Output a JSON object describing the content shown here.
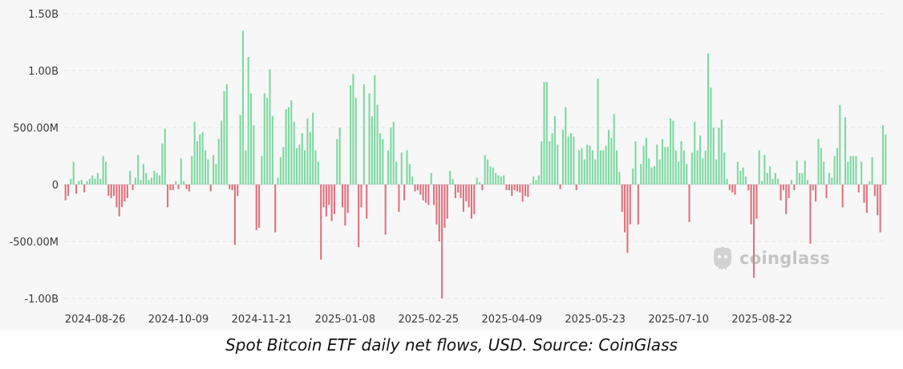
{
  "chart_data": {
    "type": "bar",
    "title": "",
    "xlabel": "",
    "ylabel": "",
    "ylim": [
      -1.08,
      1.52
    ],
    "y_unit": "USD billions",
    "y_ticks": [
      {
        "value": 1.5,
        "label": "1.50B"
      },
      {
        "value": 1.0,
        "label": "1.00B"
      },
      {
        "value": 0.5,
        "label": "500.00M"
      },
      {
        "value": 0.0,
        "label": "0"
      },
      {
        "value": -0.5,
        "label": "-500.00M"
      },
      {
        "value": -1.0,
        "label": "-1.00B"
      }
    ],
    "x_ticks": [
      "2024-08-26",
      "2024-10-09",
      "2024-11-21",
      "2025-01-08",
      "2025-02-25",
      "2025-04-09",
      "2025-05-23",
      "2025-07-10",
      "2025-08-22"
    ],
    "x_tick_slots": [
      11,
      42,
      73,
      104,
      135,
      166,
      197,
      228,
      259
    ],
    "grid": true,
    "positive_color": "#7dd8a0",
    "negative_color": "#e2707c",
    "values": [
      -0.14,
      -0.1,
      0.05,
      0.2,
      -0.08,
      0.03,
      0.04,
      -0.07,
      0.03,
      0.05,
      0.08,
      0.05,
      0.1,
      0.05,
      0.25,
      0.2,
      -0.1,
      -0.12,
      -0.1,
      -0.2,
      -0.28,
      -0.2,
      -0.15,
      -0.12,
      0.12,
      -0.05,
      0.06,
      0.26,
      0.04,
      0.18,
      0.1,
      0.04,
      0.06,
      0.12,
      0.1,
      0.08,
      0.36,
      0.49,
      -0.2,
      -0.05,
      -0.05,
      0.03,
      -0.04,
      0.23,
      0.03,
      -0.04,
      -0.06,
      0.25,
      0.55,
      0.38,
      0.44,
      0.46,
      0.3,
      0.22,
      -0.06,
      0.26,
      0.18,
      0.4,
      0.56,
      0.82,
      0.88,
      -0.04,
      -0.05,
      -0.53,
      -0.1,
      0.61,
      1.35,
      0.3,
      1.12,
      0.8,
      0.52,
      -0.4,
      -0.38,
      0.25,
      0.8,
      0.76,
      1.01,
      0.6,
      -0.42,
      0.06,
      0.24,
      0.33,
      0.66,
      0.68,
      0.74,
      0.55,
      0.32,
      0.35,
      0.45,
      0.3,
      0.58,
      0.46,
      0.63,
      0.3,
      0.2,
      -0.66,
      -0.2,
      -0.28,
      -0.18,
      -0.32,
      -0.26,
      0.4,
      0.5,
      -0.2,
      -0.36,
      -0.25,
      0.87,
      0.97,
      0.76,
      -0.55,
      -0.2,
      0.88,
      -0.3,
      0.8,
      0.6,
      0.96,
      0.7,
      0.45,
      0.4,
      -0.44,
      0.3,
      0.5,
      0.55,
      0.2,
      -0.24,
      0.28,
      -0.14,
      0.3,
      0.18,
      0.07,
      -0.06,
      -0.05,
      -0.09,
      -0.14,
      -0.16,
      -0.18,
      0.1,
      -0.18,
      -0.35,
      -0.5,
      -1.0,
      -0.38,
      -0.3,
      0.12,
      0.05,
      -0.12,
      -0.07,
      -0.12,
      -0.24,
      -0.15,
      -0.2,
      -0.3,
      -0.26,
      0.06,
      0.02,
      -0.05,
      0.26,
      0.22,
      0.16,
      0.15,
      0.1,
      0.08,
      0.07,
      0.08,
      -0.05,
      -0.05,
      -0.1,
      -0.05,
      -0.06,
      -0.07,
      -0.15,
      -0.1,
      -0.11,
      0.01,
      0.07,
      0.04,
      0.08,
      0.38,
      0.9,
      0.9,
      0.38,
      0.45,
      0.6,
      0.35,
      -0.04,
      0.48,
      0.68,
      0.42,
      0.45,
      0.42,
      -0.05,
      0.3,
      0.32,
      0.22,
      0.35,
      0.34,
      0.3,
      0.22,
      0.93,
      0.3,
      0.3,
      0.34,
      0.48,
      0.41,
      0.62,
      0.3,
      0.11,
      -0.24,
      -0.42,
      -0.6,
      -0.35,
      0.14,
      0.38,
      -0.35,
      0.18,
      0.34,
      0.41,
      0.23,
      0.15,
      0.16,
      0.35,
      0.22,
      0.4,
      0.33,
      0.33,
      0.58,
      0.56,
      0.3,
      0.2,
      0.38,
      0.3,
      0.18,
      -0.33,
      0.28,
      0.55,
      0.3,
      0.43,
      0.23,
      0.3,
      1.15,
      0.85,
      0.5,
      0.22,
      0.5,
      0.57,
      0.28,
      0.05,
      -0.05,
      -0.07,
      -0.09,
      0.2,
      0.12,
      0.15,
      0.07,
      -0.05,
      -0.35,
      -0.82,
      -0.3,
      0.3,
      0.03,
      0.26,
      0.1,
      0.16,
      0.05,
      0.1,
      0.05,
      -0.14,
      -0.05,
      -0.26,
      -0.12,
      0.04,
      -0.05,
      0.21,
      0.1,
      0.1,
      0.21,
      0.04,
      -0.52,
      -0.05,
      -0.15,
      0.4,
      0.32,
      0.2,
      -0.12,
      0.1,
      0.06,
      0.25,
      0.32,
      0.7,
      -0.2,
      0.59,
      0.2,
      0.25,
      0.25,
      0.25,
      -0.07,
      0.2,
      -0.16,
      -0.25,
      0.03,
      0.24,
      -0.1,
      -0.27,
      -0.42,
      0.52,
      0.44
    ]
  },
  "watermark": {
    "text": "coinglass",
    "icon": "coinglass-logo-icon"
  },
  "caption": "Spot Bitcoin ETF daily net flows, USD. Source: CoinGlass"
}
